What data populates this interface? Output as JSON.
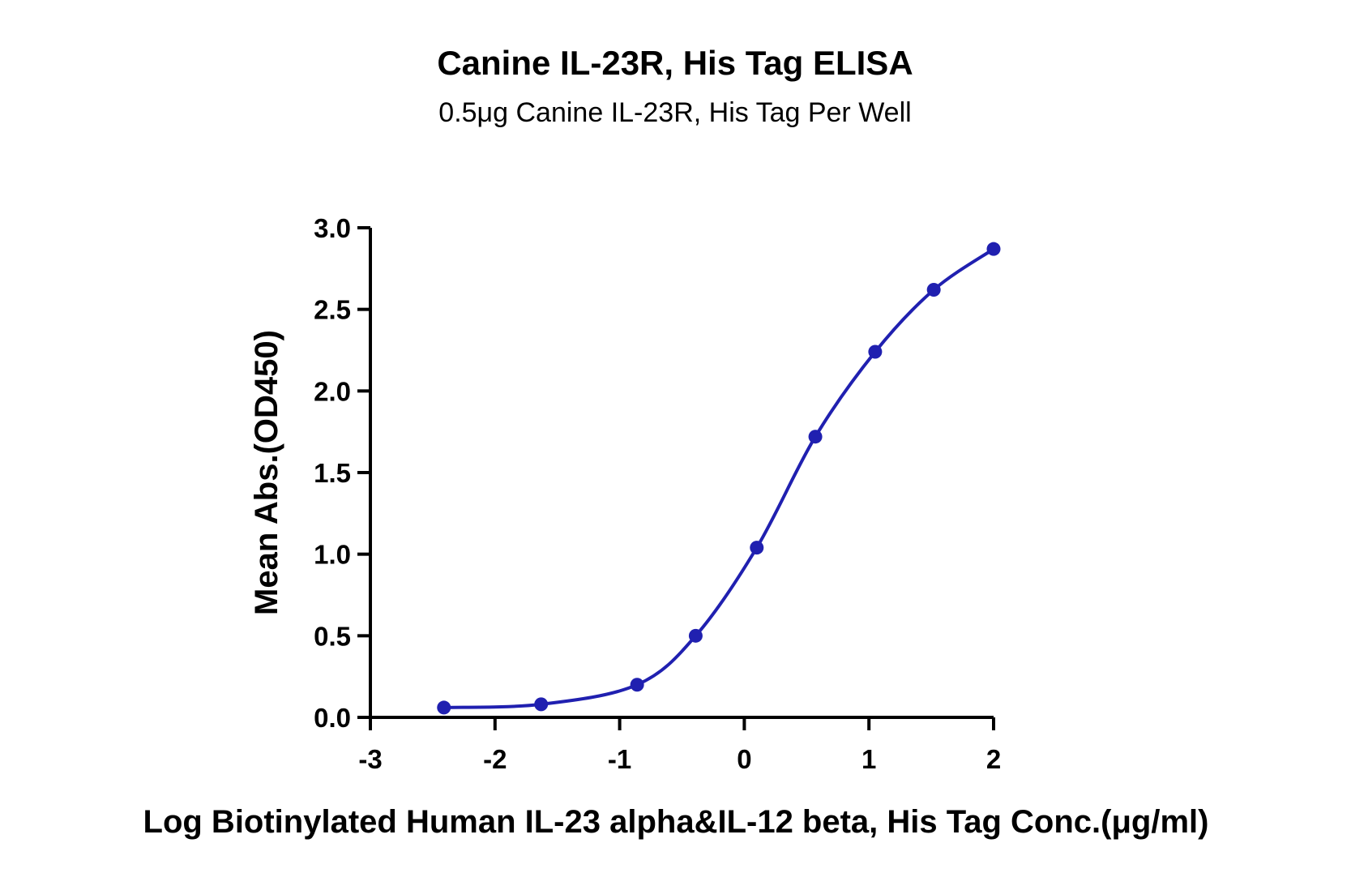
{
  "chart_data": {
    "type": "scatter",
    "title": "Canine IL-23R, His Tag ELISA",
    "subtitle": "0.5μg Canine IL-23R, His Tag Per Well",
    "xlabel": "Log Biotinylated Human IL-23 alpha&IL-12 beta, His Tag Conc.(μg/ml)",
    "ylabel": "Mean Abs.(OD450)",
    "xlim": [
      -3,
      2
    ],
    "ylim": [
      0,
      3.0
    ],
    "x_ticks": [
      "-3",
      "-2",
      "-1",
      "0",
      "1",
      "2"
    ],
    "y_ticks": [
      "0.0",
      "0.5",
      "1.0",
      "1.5",
      "2.0",
      "2.5",
      "3.0"
    ],
    "grid": false,
    "color": "#2020b0",
    "series": [
      {
        "points": [
          {
            "x": -2.41,
            "y": 0.06
          },
          {
            "x": -1.63,
            "y": 0.08
          },
          {
            "x": -0.86,
            "y": 0.2
          },
          {
            "x": -0.39,
            "y": 0.5
          },
          {
            "x": 0.1,
            "y": 1.04
          },
          {
            "x": 0.57,
            "y": 1.72
          },
          {
            "x": 1.05,
            "y": 2.24
          },
          {
            "x": 1.52,
            "y": 2.62
          },
          {
            "x": 2.0,
            "y": 2.87
          }
        ],
        "fit": "four-parameter logistic"
      }
    ]
  }
}
